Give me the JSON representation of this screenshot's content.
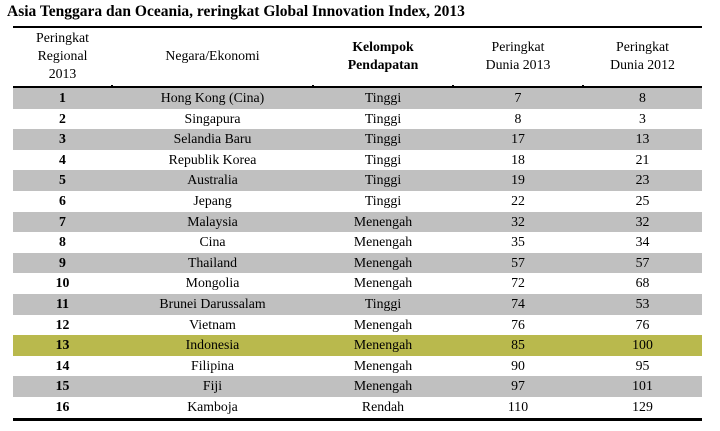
{
  "title": "Asia Tenggara dan Oceania, reringkat Global Innovation Index, 2013",
  "colors": {
    "gray": "#C0C0C0",
    "highlight": "#B9B94D",
    "white": "#FFFFFF",
    "border": "#000000"
  },
  "table": {
    "columns": [
      {
        "label": "Peringkat\nRegional\n2013",
        "bold": false
      },
      {
        "label": "Negara/Ekonomi",
        "bold": false
      },
      {
        "label": "Kelompok\nPendapatan",
        "bold": true
      },
      {
        "label": "Peringkat\nDunia 2013",
        "bold": false
      },
      {
        "label": "Peringkat\nDunia 2012",
        "bold": false
      }
    ],
    "rows": [
      {
        "rank": "1",
        "country": "Hong Kong (Cina)",
        "income": "Tinggi",
        "world2013": "7",
        "world2012": "8",
        "shade": "gray"
      },
      {
        "rank": "2",
        "country": "Singapura",
        "income": "Tinggi",
        "world2013": "8",
        "world2012": "3",
        "shade": "white"
      },
      {
        "rank": "3",
        "country": "Selandia Baru",
        "income": "Tinggi",
        "world2013": "17",
        "world2012": "13",
        "shade": "gray"
      },
      {
        "rank": "4",
        "country": "Republik Korea",
        "income": "Tinggi",
        "world2013": "18",
        "world2012": "21",
        "shade": "white"
      },
      {
        "rank": "5",
        "country": "Australia",
        "income": "Tinggi",
        "world2013": "19",
        "world2012": "23",
        "shade": "gray"
      },
      {
        "rank": "6",
        "country": "Jepang",
        "income": "Tinggi",
        "world2013": "22",
        "world2012": "25",
        "shade": "white"
      },
      {
        "rank": "7",
        "country": "Malaysia",
        "income": "Menengah",
        "world2013": "32",
        "world2012": "32",
        "shade": "gray"
      },
      {
        "rank": "8",
        "country": "Cina",
        "income": "Menengah",
        "world2013": "35",
        "world2012": "34",
        "shade": "white"
      },
      {
        "rank": "9",
        "country": "Thailand",
        "income": "Menengah",
        "world2013": "57",
        "world2012": "57",
        "shade": "gray"
      },
      {
        "rank": "10",
        "country": "Mongolia",
        "income": "Menengah",
        "world2013": "72",
        "world2012": "68",
        "shade": "white"
      },
      {
        "rank": "11",
        "country": "Brunei Darussalam",
        "income": "Tinggi",
        "world2013": "74",
        "world2012": "53",
        "shade": "gray"
      },
      {
        "rank": "12",
        "country": "Vietnam",
        "income": "Menengah",
        "world2013": "76",
        "world2012": "76",
        "shade": "white"
      },
      {
        "rank": "13",
        "country": "Indonesia",
        "income": "Menengah",
        "world2013": "85",
        "world2012": "100",
        "shade": "highlight"
      },
      {
        "rank": "14",
        "country": "Filipina",
        "income": "Menengah",
        "world2013": "90",
        "world2012": "95",
        "shade": "white"
      },
      {
        "rank": "15",
        "country": "Fiji",
        "income": "Menengah",
        "world2013": "97",
        "world2012": "101",
        "shade": "gray"
      },
      {
        "rank": "16",
        "country": "Kamboja",
        "income": "Rendah",
        "world2013": "110",
        "world2012": "129",
        "shade": "white"
      }
    ]
  }
}
